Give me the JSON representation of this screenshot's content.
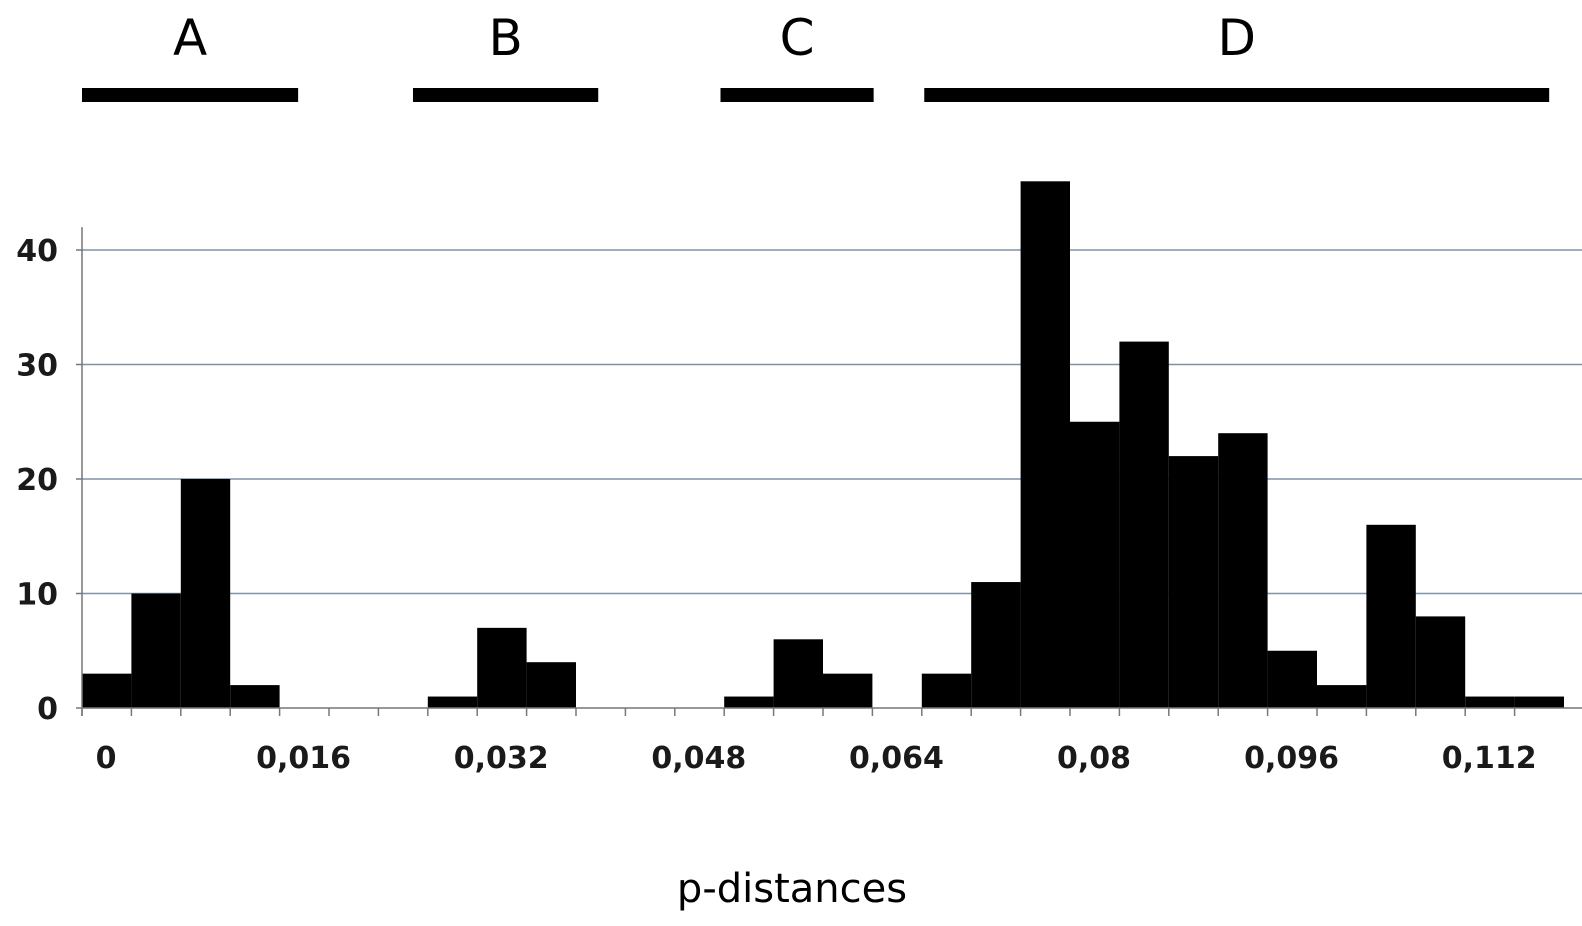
{
  "chart_data": {
    "type": "bar",
    "xlabel": "p-distances",
    "ylabel": "",
    "bin_width": 0.004,
    "x_start": 0,
    "xlim": [
      0,
      0.116
    ],
    "ylim": [
      0,
      46
    ],
    "grid": true,
    "y_ticks": [
      "0",
      "10",
      "20",
      "30",
      "40"
    ],
    "y_tick_values": [
      0,
      10,
      20,
      30,
      40
    ],
    "x_ticks": [
      "0",
      "0,016",
      "0,032",
      "0,048",
      "0,064",
      "0,08",
      "0,096",
      "0,112"
    ],
    "x_tick_values": [
      0,
      0.016,
      0.032,
      0.048,
      0.064,
      0.08,
      0.096,
      0.112
    ],
    "values": [
      3,
      10,
      20,
      2,
      0,
      0,
      0,
      1,
      7,
      4,
      0,
      0,
      0,
      1,
      6,
      3,
      0,
      3,
      11,
      46,
      25,
      32,
      22,
      24,
      5,
      2,
      16,
      8,
      1,
      1
    ],
    "groups": [
      {
        "label": "A",
        "range": [
          0,
          0.0175
        ]
      },
      {
        "label": "B",
        "range": [
          0.0268,
          0.0418
        ]
      },
      {
        "label": "C",
        "range": [
          0.0517,
          0.0641
        ]
      },
      {
        "label": "D",
        "range": [
          0.0682,
          0.1188
        ]
      }
    ]
  }
}
